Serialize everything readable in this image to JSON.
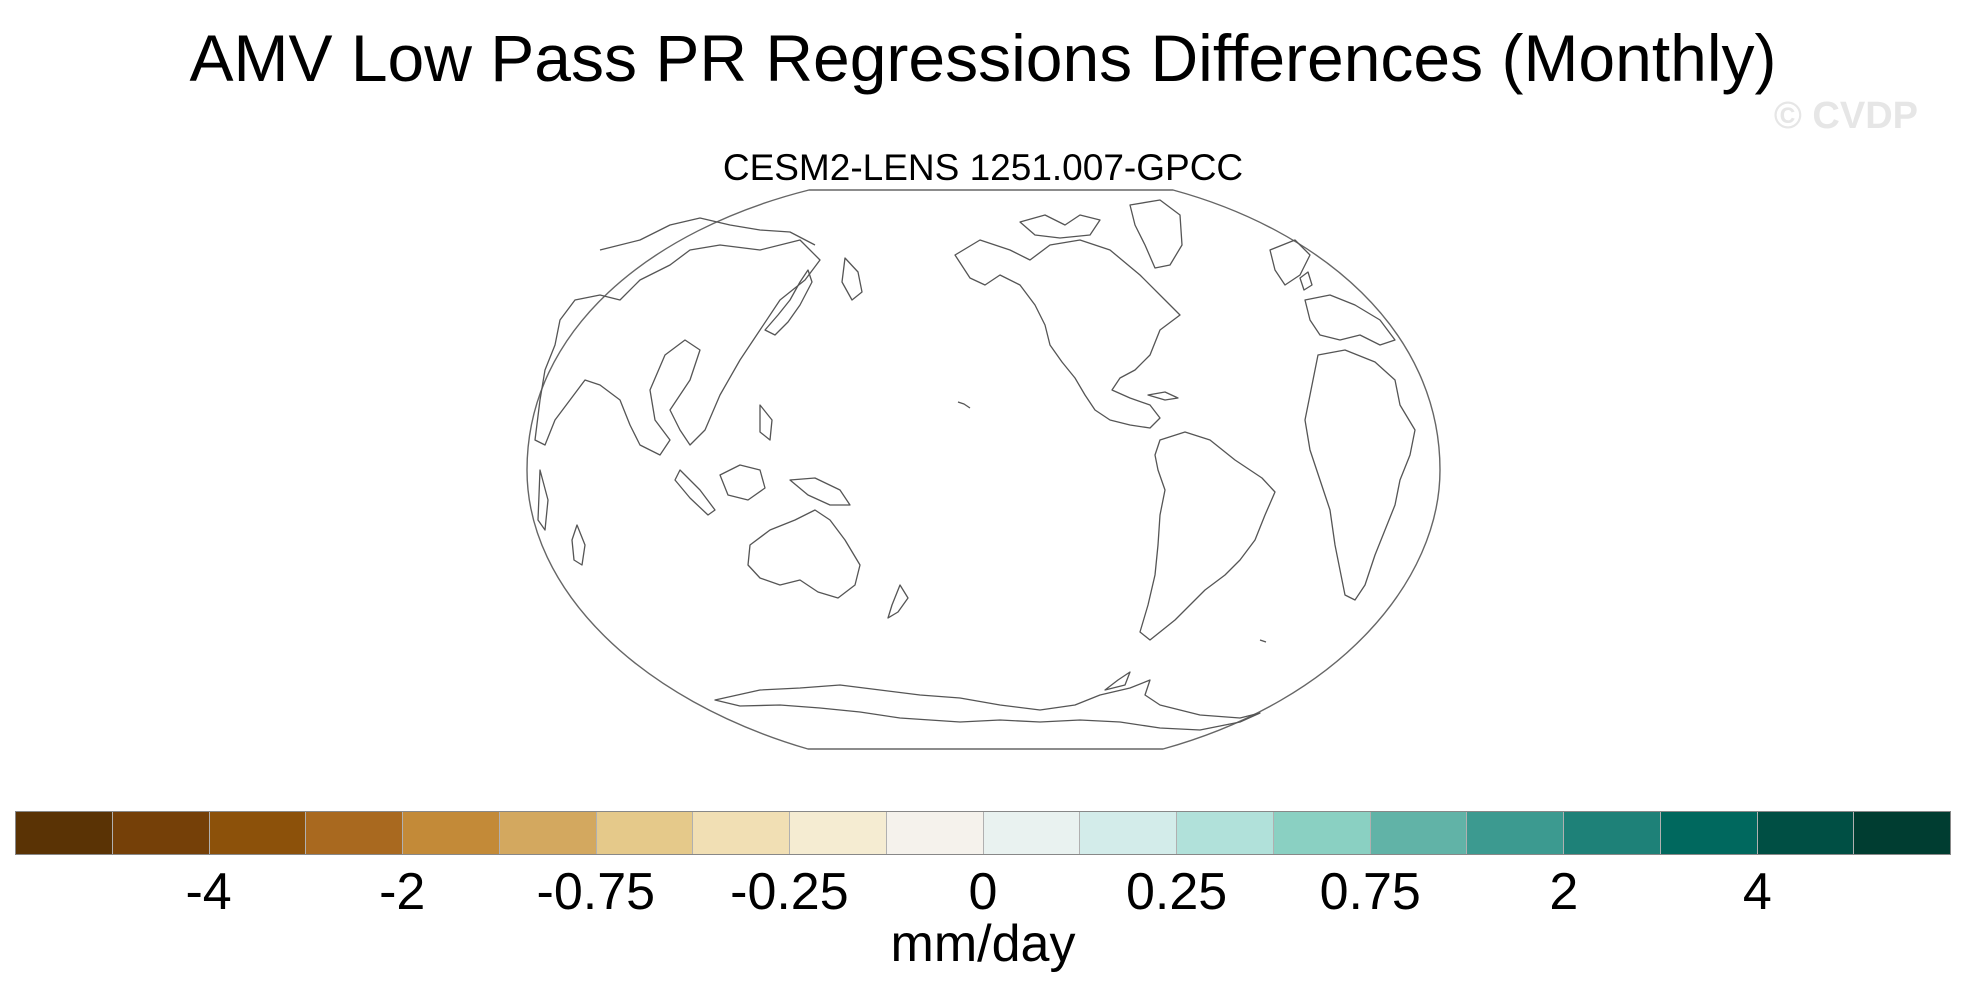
{
  "title": "AMV Low Pass PR Regressions Differences (Monthly)",
  "watermark": "© CVDP",
  "map": {
    "subtitle": "CESM2-LENS 1251.007-GPCC",
    "projection": "Robinson",
    "center_longitude": 180,
    "field_shading": "none"
  },
  "colorbar": {
    "units": "mm/day",
    "colors": [
      "#5a3305",
      "#754008",
      "#8c510a",
      "#a9691f",
      "#c38a38",
      "#d3a85f",
      "#e5c98a",
      "#f1dfb4",
      "#f5ecd2",
      "#f5f2ec",
      "#e9f2f0",
      "#d3ecea",
      "#b1e1da",
      "#8ad0c2",
      "#61b3a7",
      "#3c9a90",
      "#1e8178",
      "#00685e",
      "#004f44",
      "#003d31"
    ],
    "labels": [
      {
        "text": "-4",
        "boundary": 2
      },
      {
        "text": "-2",
        "boundary": 4
      },
      {
        "text": "-0.75",
        "boundary": 6
      },
      {
        "text": "-0.25",
        "boundary": 8
      },
      {
        "text": "0",
        "boundary": 10
      },
      {
        "text": "0.25",
        "boundary": 12
      },
      {
        "text": "0.75",
        "boundary": 14
      },
      {
        "text": "2",
        "boundary": 16
      },
      {
        "text": "4",
        "boundary": 18
      }
    ]
  }
}
